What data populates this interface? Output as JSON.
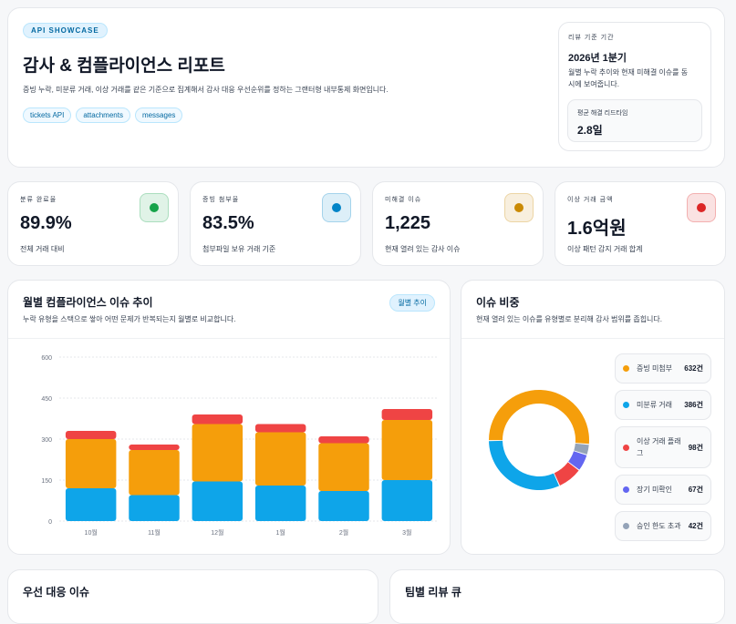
{
  "header": {
    "badge": "API SHOWCASE",
    "title": "감사 & 컴플라이언스 리포트",
    "description": "증빙 누락, 미분류 거래, 이상 거래를 같은 기준으로 집계해서 감사 대응 우선순위를 정하는 그랜터형 내부통제 화면입니다.",
    "tags": [
      "tickets API",
      "attachments",
      "messages"
    ],
    "period": {
      "label": "리뷰 기준 기간",
      "value": "2026년 1분기",
      "description": "월별 누락 추이와 현재 미해결 이슈를 동시에 보여줍니다."
    },
    "lead_time": {
      "label": "평균 해결 리드타임",
      "value": "2.8일"
    }
  },
  "kpis": [
    {
      "label": "분류 완료율",
      "value": "89.9%",
      "note": "전체 거래 대비",
      "color": "#16a34a"
    },
    {
      "label": "증빙 첨부율",
      "value": "83.5%",
      "note": "첨부파일 보유 거래 기준",
      "color": "#0284c7"
    },
    {
      "label": "미해결 이슈",
      "value": "1,225",
      "note": "현재 열려 있는 감사 이슈",
      "color": "#ca8a04"
    },
    {
      "label": "이상 거래 금액",
      "value": "1.6억원",
      "note": "이상 패턴 감지 거래 합계",
      "color": "#dc2626"
    }
  ],
  "chart_data": [
    {
      "type": "bar",
      "stacked": true,
      "title": "월별 컴플라이언스 이슈 추이",
      "badge": "월별 추이",
      "subtitle": "누락 유형을 스택으로 쌓아 어떤 문제가 반복되는지 월별로 비교합니다.",
      "categories": [
        "10월",
        "11월",
        "12월",
        "1월",
        "2월",
        "3월"
      ],
      "series": [
        {
          "color": "#0ea5e9",
          "values": [
            120,
            95,
            145,
            130,
            110,
            150
          ]
        },
        {
          "color": "#f59e0b",
          "values": [
            180,
            165,
            210,
            195,
            175,
            220
          ]
        },
        {
          "color": "#ef4444",
          "values": [
            30,
            20,
            35,
            30,
            25,
            40
          ]
        }
      ],
      "ylim": [
        0,
        600
      ],
      "yticks": [
        0,
        150,
        300,
        450,
        600
      ],
      "grid": true
    },
    {
      "type": "donut",
      "title": "이슈 비중",
      "subtitle": "현재 열려 있는 이슈를 유형별로 분리해 감사 범위를 좁힙니다.",
      "categories": [
        "증빙 미첨부",
        "미분류 거래",
        "이상 거래 플래그",
        "장기 미확인",
        "승인 한도 초과"
      ],
      "values": [
        632,
        386,
        98,
        67,
        42
      ],
      "value_labels": [
        "632건",
        "386건",
        "98건",
        "67건",
        "42건"
      ],
      "colors": [
        "#f59e0b",
        "#0ea5e9",
        "#ef4444",
        "#6366f1",
        "#94a3b8"
      ]
    }
  ],
  "sections": [
    "우선 대응 이슈",
    "팀별 리뷰 큐"
  ]
}
